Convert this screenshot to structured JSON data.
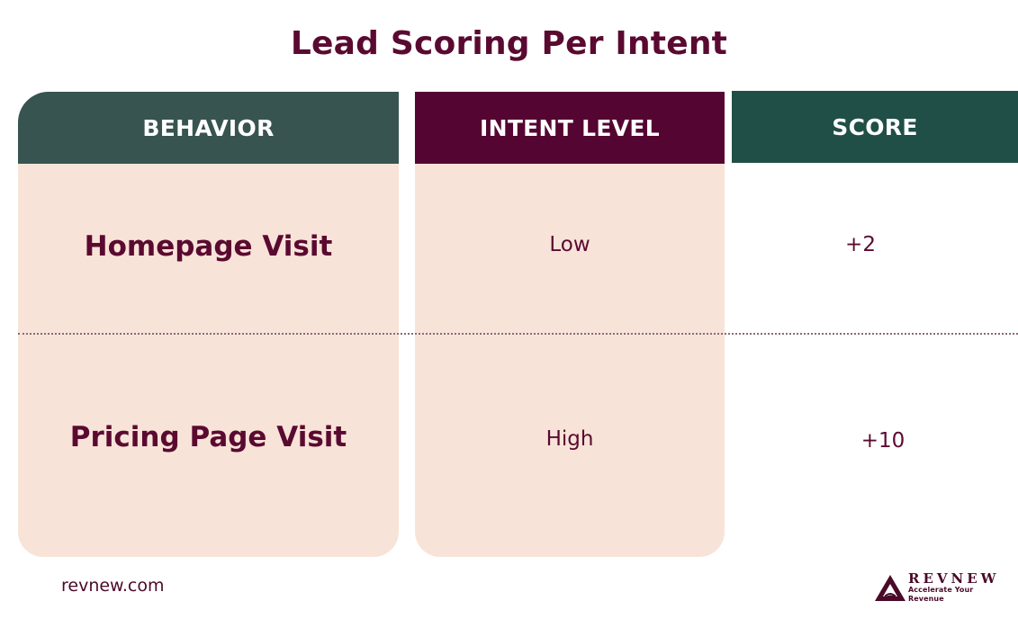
{
  "title": "Lead Scoring Per Intent",
  "headers": {
    "behavior": "BEHAVIOR",
    "intent": "INTENT LEVEL",
    "score": "SCORE"
  },
  "rows": [
    {
      "behavior": "Homepage Visit",
      "intent": "Low",
      "score": "+2"
    },
    {
      "behavior": "Pricing Page Visit",
      "intent": "High",
      "score": "+10"
    }
  ],
  "footer": {
    "url": "revnew.com",
    "logo_name": "REVNEW",
    "logo_tagline": "Accelerate Your Revenue"
  },
  "colors": {
    "title": "#5a0a30",
    "behavior_header": "#375450",
    "intent_header": "#550531",
    "score_header": "#1f4f46",
    "column_fill": "#f8e3d8"
  }
}
